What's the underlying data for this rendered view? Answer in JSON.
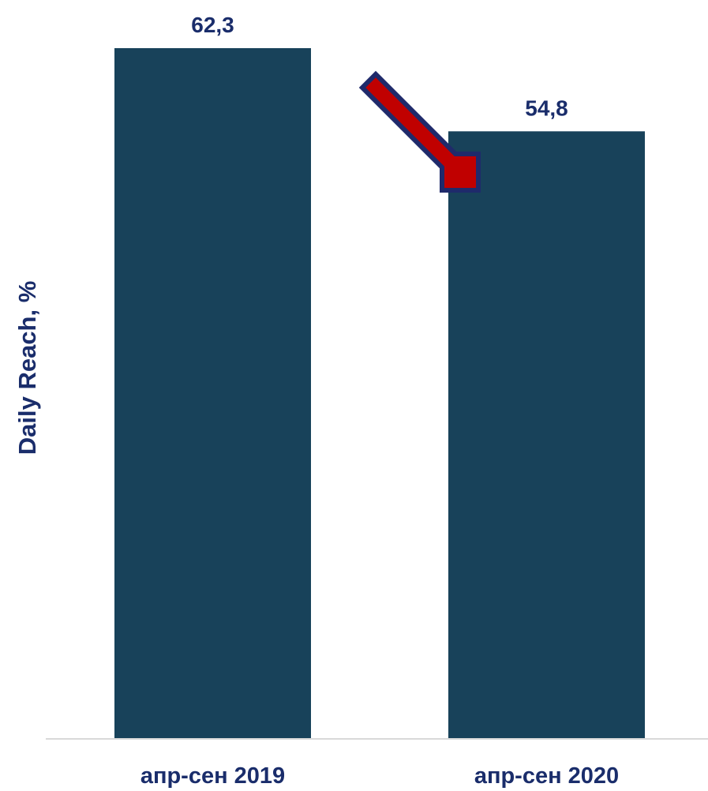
{
  "chart_data": {
    "type": "bar",
    "title": "",
    "xlabel": "",
    "ylabel": "Daily Reach, %",
    "categories": [
      "апр-сен 2019",
      "апр-сен 2020"
    ],
    "values": [
      62.3,
      54.8
    ],
    "data_labels": [
      "62,3",
      "54,8"
    ],
    "ylim": [
      0,
      62.3
    ],
    "grid": false,
    "legend": "none",
    "annotation": "down-arrow-icon"
  },
  "colors": {
    "bar": "#18425a",
    "text": "#1a2d6b",
    "axis": "#d9d9d9",
    "arrow_fill": "#c00000",
    "arrow_outline": "#1f2a6b"
  }
}
